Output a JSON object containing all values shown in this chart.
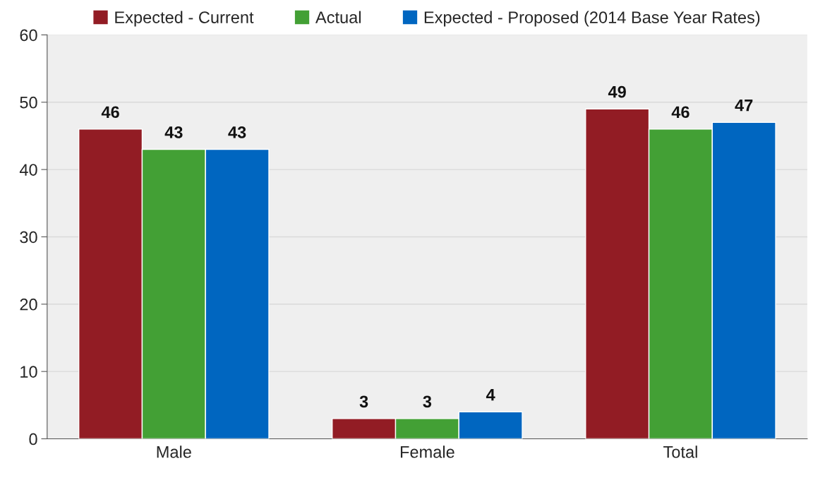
{
  "chart_data": {
    "type": "bar",
    "categories": [
      "Male",
      "Female",
      "Total"
    ],
    "series": [
      {
        "name": "Expected - Current",
        "color": "#921c24",
        "values": [
          46,
          3,
          49
        ]
      },
      {
        "name": "Actual",
        "color": "#43a035",
        "values": [
          43,
          3,
          46
        ]
      },
      {
        "name": "Expected - Proposed (2014 Base Year Rates)",
        "color": "#0066c0",
        "values": [
          43,
          4,
          47
        ]
      }
    ],
    "ylim": [
      0,
      60
    ],
    "yticks": [
      0,
      10,
      20,
      30,
      40,
      50,
      60
    ],
    "grid": "y",
    "legend": "top",
    "data_labels": true
  }
}
